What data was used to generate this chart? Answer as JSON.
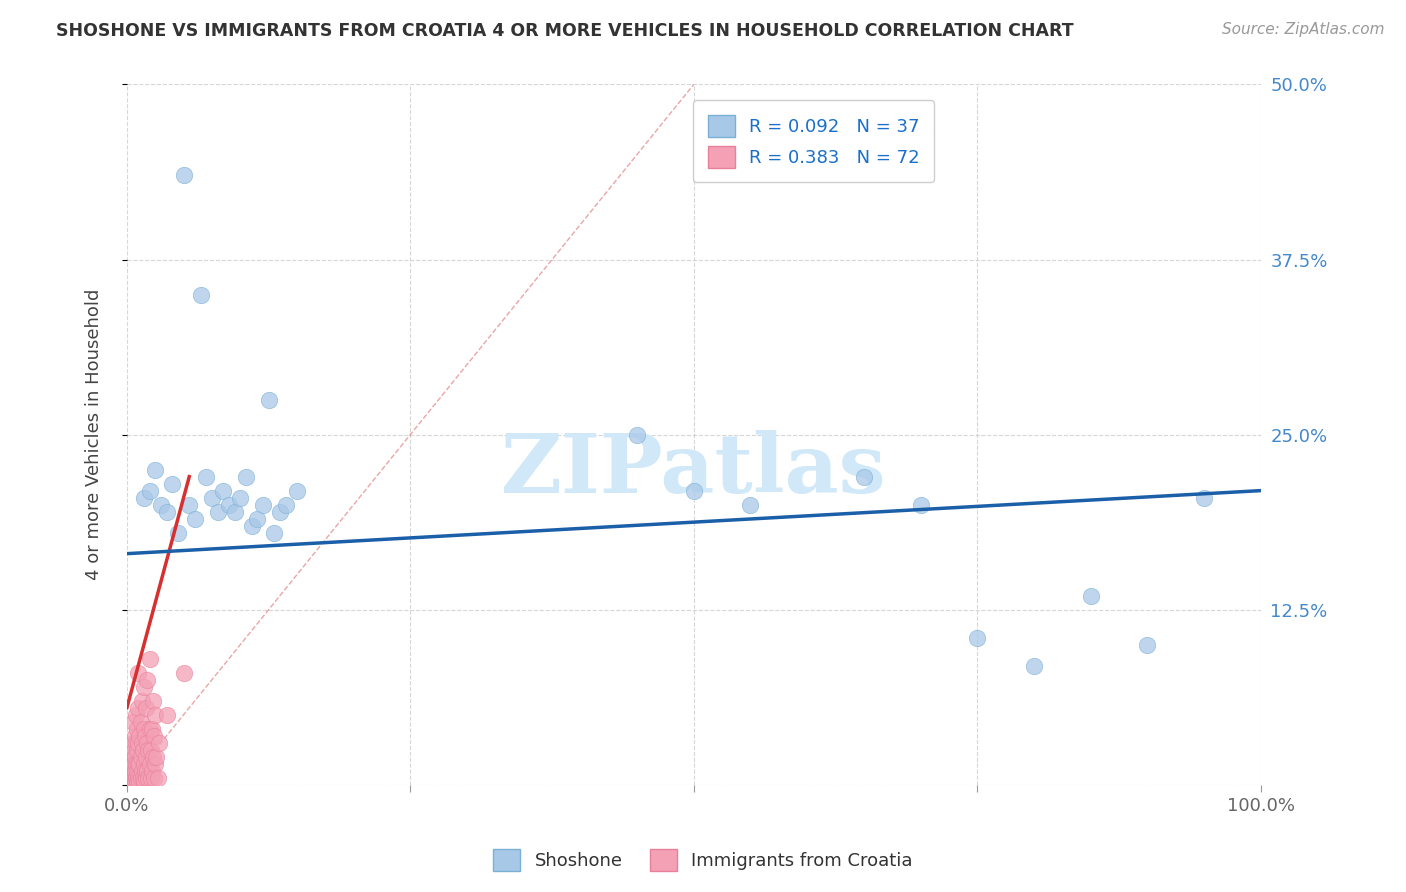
{
  "title": "SHOSHONE VS IMMIGRANTS FROM CROATIA 4 OR MORE VEHICLES IN HOUSEHOLD CORRELATION CHART",
  "source": "Source: ZipAtlas.com",
  "ylabel": "4 or more Vehicles in Household",
  "xlim": [
    0,
    100
  ],
  "ylim": [
    0,
    50
  ],
  "xtick_vals": [
    0,
    25,
    50,
    75,
    100
  ],
  "xticklabels": [
    "0.0%",
    "",
    "",
    "",
    "100.0%"
  ],
  "ytick_vals": [
    0,
    12.5,
    25,
    37.5,
    50
  ],
  "yticklabels": [
    "",
    "12.5%",
    "25.0%",
    "37.5%",
    "50.0%"
  ],
  "shoshone_color": "#a8c8e8",
  "shoshone_edge_color": "#7ab0d4",
  "croatia_color": "#f4a0b5",
  "croatia_edge_color": "#e8809a",
  "shoshone_line_color": "#1a5fa8",
  "croatia_line_color": "#d63030",
  "background_color": "#ffffff",
  "grid_color": "#cccccc",
  "legend_label1": "R = 0.092   N = 37",
  "legend_label2": "R = 0.383   N = 72",
  "legend_text_color": "#1a6fcc",
  "shoshone_line_x": [
    0,
    100
  ],
  "shoshone_line_y": [
    16.5,
    21.0
  ],
  "croatia_line_x": [
    0,
    5.5
  ],
  "croatia_line_y": [
    5.5,
    22.0
  ],
  "diag_line_x": [
    0,
    50
  ],
  "diag_line_y": [
    0,
    50
  ],
  "shoshone_scatter": [
    [
      1.5,
      20.5
    ],
    [
      2.0,
      21.0
    ],
    [
      2.5,
      22.5
    ],
    [
      3.0,
      20.0
    ],
    [
      3.5,
      19.5
    ],
    [
      4.0,
      21.5
    ],
    [
      4.5,
      18.0
    ],
    [
      5.0,
      43.5
    ],
    [
      5.5,
      20.0
    ],
    [
      6.0,
      19.0
    ],
    [
      6.5,
      35.0
    ],
    [
      7.0,
      22.0
    ],
    [
      7.5,
      20.5
    ],
    [
      8.0,
      19.5
    ],
    [
      8.5,
      21.0
    ],
    [
      9.0,
      20.0
    ],
    [
      9.5,
      19.5
    ],
    [
      10.0,
      20.5
    ],
    [
      10.5,
      22.0
    ],
    [
      11.0,
      18.5
    ],
    [
      11.5,
      19.0
    ],
    [
      12.0,
      20.0
    ],
    [
      12.5,
      27.5
    ],
    [
      13.0,
      18.0
    ],
    [
      13.5,
      19.5
    ],
    [
      14.0,
      20.0
    ],
    [
      15.0,
      21.0
    ],
    [
      45.0,
      25.0
    ],
    [
      50.0,
      21.0
    ],
    [
      55.0,
      20.0
    ],
    [
      65.0,
      22.0
    ],
    [
      70.0,
      20.0
    ],
    [
      75.0,
      10.5
    ],
    [
      80.0,
      8.5
    ],
    [
      85.0,
      13.5
    ],
    [
      90.0,
      10.0
    ],
    [
      95.0,
      20.5
    ]
  ],
  "croatia_scatter": [
    [
      0.2,
      0.3
    ],
    [
      0.3,
      0.5
    ],
    [
      0.4,
      0.8
    ],
    [
      0.4,
      1.5
    ],
    [
      0.5,
      0.2
    ],
    [
      0.5,
      1.0
    ],
    [
      0.5,
      2.0
    ],
    [
      0.5,
      3.0
    ],
    [
      0.5,
      4.5
    ],
    [
      0.6,
      0.5
    ],
    [
      0.6,
      1.5
    ],
    [
      0.6,
      2.5
    ],
    [
      0.7,
      0.3
    ],
    [
      0.7,
      1.0
    ],
    [
      0.7,
      2.0
    ],
    [
      0.7,
      3.5
    ],
    [
      0.8,
      0.5
    ],
    [
      0.8,
      1.5
    ],
    [
      0.8,
      3.0
    ],
    [
      0.8,
      5.0
    ],
    [
      0.9,
      0.3
    ],
    [
      0.9,
      1.0
    ],
    [
      0.9,
      2.5
    ],
    [
      0.9,
      4.0
    ],
    [
      1.0,
      0.5
    ],
    [
      1.0,
      1.5
    ],
    [
      1.0,
      3.0
    ],
    [
      1.0,
      5.5
    ],
    [
      1.0,
      8.0
    ],
    [
      1.1,
      0.3
    ],
    [
      1.1,
      1.5
    ],
    [
      1.1,
      3.5
    ],
    [
      1.2,
      0.5
    ],
    [
      1.2,
      2.0
    ],
    [
      1.2,
      4.5
    ],
    [
      1.3,
      1.0
    ],
    [
      1.3,
      3.0
    ],
    [
      1.3,
      6.0
    ],
    [
      1.4,
      0.5
    ],
    [
      1.4,
      2.5
    ],
    [
      1.5,
      0.3
    ],
    [
      1.5,
      1.5
    ],
    [
      1.5,
      4.0
    ],
    [
      1.5,
      7.0
    ],
    [
      1.6,
      1.0
    ],
    [
      1.6,
      3.5
    ],
    [
      1.7,
      0.5
    ],
    [
      1.7,
      2.0
    ],
    [
      1.7,
      5.5
    ],
    [
      1.8,
      1.0
    ],
    [
      1.8,
      3.0
    ],
    [
      1.8,
      7.5
    ],
    [
      1.9,
      0.5
    ],
    [
      1.9,
      2.5
    ],
    [
      2.0,
      1.5
    ],
    [
      2.0,
      4.0
    ],
    [
      2.0,
      9.0
    ],
    [
      2.1,
      0.5
    ],
    [
      2.1,
      2.5
    ],
    [
      2.2,
      1.0
    ],
    [
      2.2,
      4.0
    ],
    [
      2.3,
      2.0
    ],
    [
      2.3,
      6.0
    ],
    [
      2.4,
      0.5
    ],
    [
      2.4,
      3.5
    ],
    [
      2.5,
      1.5
    ],
    [
      2.5,
      5.0
    ],
    [
      2.6,
      2.0
    ],
    [
      2.7,
      0.5
    ],
    [
      2.8,
      3.0
    ],
    [
      3.5,
      5.0
    ],
    [
      5.0,
      8.0
    ]
  ],
  "watermark_text": "ZIPatlas",
  "watermark_color": "#d0e8f8"
}
